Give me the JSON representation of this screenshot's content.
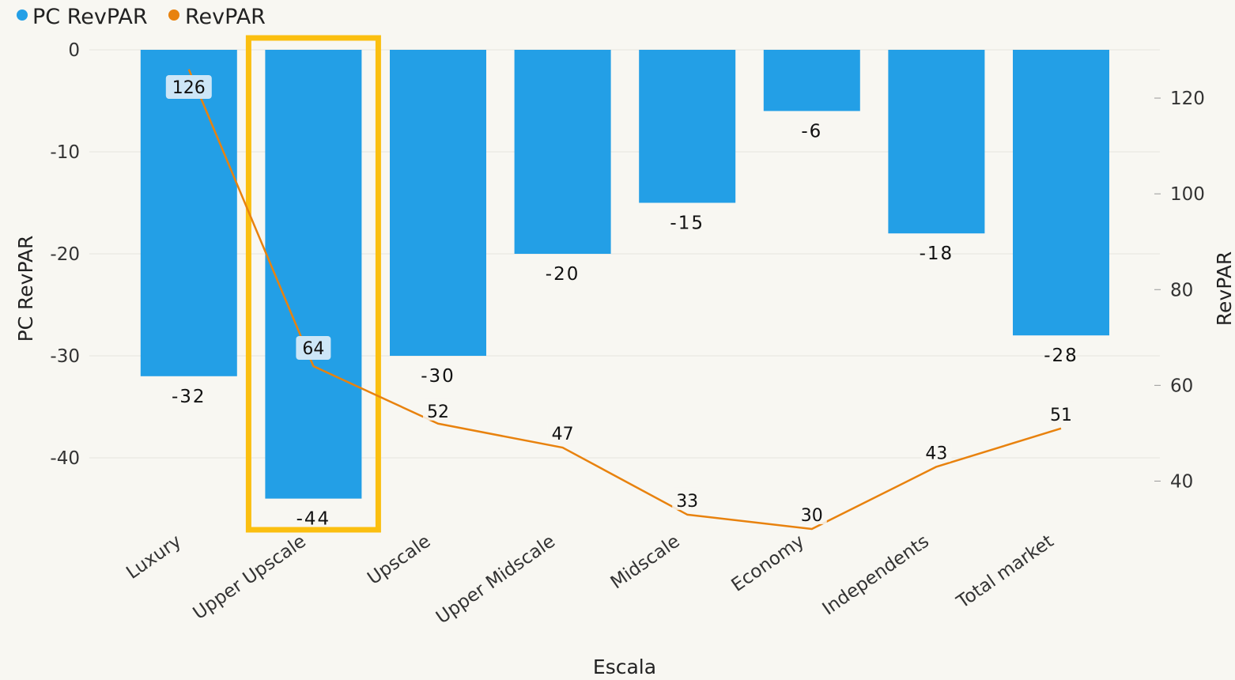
{
  "chart_data": {
    "type": "bar",
    "categories": [
      "Luxury",
      "Upper Upscale",
      "Upscale",
      "Upper Midscale",
      "Midscale",
      "Economy",
      "Independents",
      "Total market"
    ],
    "series": [
      {
        "name": "PC RevPAR",
        "type": "bar",
        "axis": "left",
        "color": "#239fe6",
        "values": [
          -32,
          -44,
          -30,
          -20,
          -15,
          -6,
          -18,
          -28
        ],
        "labels": [
          "-32",
          "-44",
          "-30",
          "-20",
          "-15",
          "-6",
          "-18",
          "-28"
        ]
      },
      {
        "name": "RevPAR",
        "type": "line",
        "axis": "right",
        "color": "#e8820e",
        "values": [
          126,
          64,
          52,
          47,
          33,
          30,
          43,
          51
        ],
        "labels": [
          "126",
          "64",
          "52",
          "47",
          "33",
          "30",
          "43",
          "51"
        ]
      }
    ],
    "xlabel": "Escala",
    "ylabel": "PC RevPAR",
    "y2label": "RevPAR",
    "ylim": [
      -47,
      0
    ],
    "y2lim": [
      30,
      130
    ],
    "yticks": [
      "0",
      "-10",
      "-20",
      "-30",
      "-40"
    ],
    "y2ticks": [
      "120",
      "100",
      "80",
      "60",
      "40"
    ],
    "legend": "top-left",
    "grid": true,
    "highlighted_category": "Upper Upscale",
    "highlight_color": "#fbbf10"
  }
}
